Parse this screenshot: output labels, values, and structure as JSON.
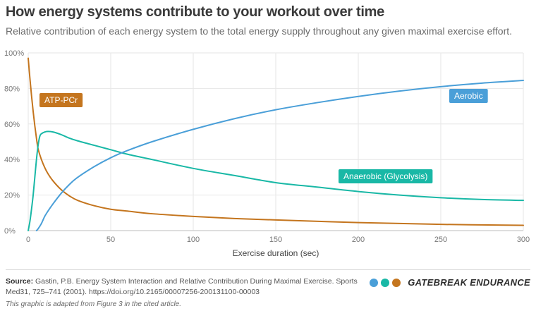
{
  "header": {
    "title": "How energy systems contribute to your workout over time",
    "subtitle": "Relative contribution of each energy system to the total energy supply throughout any given maximal exercise effort."
  },
  "footer": {
    "source_label": "Source:",
    "source_text": "Gastin, P.B. Energy System Interaction and Relative Contribution During Maximal Exercise. Sports Med31, 725–741 (2001). https://doi.org/10.2165/00007256-200131100-00003",
    "note": "This graphic is adapted from Figure 3 in the cited article.",
    "brand_name": "GATEBREAK ENDURANCE",
    "brand_dots": [
      "#4a9fd8",
      "#19b8a6",
      "#c4751e"
    ]
  },
  "chart_data": {
    "type": "line",
    "xlabel": "Exercise duration (sec)",
    "ylabel": "",
    "xlim": [
      0,
      300
    ],
    "ylim": [
      0,
      100
    ],
    "x_ticks": [
      0,
      50,
      100,
      150,
      200,
      250,
      300
    ],
    "y_ticks": [
      0,
      20,
      40,
      60,
      80,
      100
    ],
    "y_tick_labels": [
      "0%",
      "20%",
      "40%",
      "60%",
      "80%",
      "100%"
    ],
    "grid": true,
    "series": [
      {
        "name": "ATP-PCr",
        "color": "#c4751e",
        "x": [
          0,
          1,
          2,
          3,
          4,
          5,
          6,
          8,
          10,
          12,
          15,
          20,
          25,
          30,
          40,
          50,
          60,
          75,
          100,
          125,
          150,
          200,
          250,
          300
        ],
        "y": [
          97,
          86,
          76,
          67,
          59,
          52,
          46,
          40,
          35.5,
          32,
          28,
          23,
          19.5,
          17,
          14,
          12,
          11,
          9.5,
          8,
          6.8,
          6,
          4.5,
          3.5,
          3
        ]
      },
      {
        "name": "Anaerobic (Glycolysis)",
        "color": "#19b8a6",
        "x": [
          0,
          1,
          2,
          3,
          4,
          5,
          6,
          7,
          8,
          10,
          12,
          15,
          20,
          25,
          30,
          40,
          50,
          60,
          75,
          100,
          125,
          150,
          175,
          200,
          225,
          250,
          275,
          300
        ],
        "y": [
          0,
          5,
          12,
          20,
          30,
          40,
          48,
          53,
          54.5,
          55.5,
          55.8,
          55.5,
          54,
          52,
          50.5,
          48,
          45.5,
          43,
          40,
          35,
          31,
          27,
          24.5,
          22,
          20,
          18.5,
          17.5,
          17
        ]
      },
      {
        "name": "Aerobic",
        "color": "#4a9fd8",
        "x": [
          5,
          6,
          8,
          10,
          12,
          15,
          20,
          25,
          30,
          40,
          50,
          60,
          75,
          100,
          125,
          150,
          175,
          200,
          225,
          250,
          275,
          300
        ],
        "y": [
          0,
          1,
          4,
          8,
          11,
          15,
          21,
          26,
          30,
          36,
          41,
          45,
          50,
          57,
          63,
          68,
          72,
          75.5,
          78.5,
          81,
          83,
          84.5
        ]
      }
    ],
    "annotations": [
      {
        "text": "ATP-PCr",
        "series": "ATP-PCr"
      },
      {
        "text": "Aerobic",
        "series": "Aerobic"
      },
      {
        "text": "Anaerobic (Glycolysis)",
        "series": "Anaerobic (Glycolysis)"
      }
    ]
  }
}
